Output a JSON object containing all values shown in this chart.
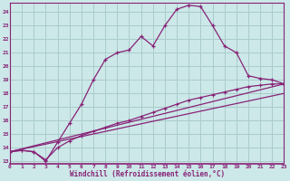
{
  "xlabel": "Windchill (Refroidissement éolien,°C)",
  "bg_color": "#cce8e8",
  "grid_color": "#aacccc",
  "line_color": "#882277",
  "x_ticks": [
    0,
    1,
    2,
    3,
    4,
    5,
    6,
    7,
    8,
    9,
    10,
    11,
    12,
    13,
    14,
    15,
    16,
    17,
    18,
    19,
    20,
    21,
    22,
    23
  ],
  "y_ticks": [
    13,
    14,
    15,
    16,
    17,
    18,
    19,
    20,
    21,
    22,
    23,
    24
  ],
  "xlim": [
    0,
    23
  ],
  "ylim": [
    12.8,
    24.7
  ],
  "line1_x": [
    0,
    1,
    2,
    3,
    4,
    5,
    6,
    7,
    8,
    9,
    10,
    11,
    12,
    13,
    14,
    15,
    16,
    17,
    18,
    19,
    20,
    21,
    22,
    23
  ],
  "line1_y": [
    13.7,
    13.8,
    13.7,
    13.0,
    14.4,
    15.8,
    17.2,
    19.0,
    20.5,
    21.0,
    21.2,
    22.2,
    21.5,
    23.0,
    24.2,
    24.5,
    24.4,
    23.0,
    21.5,
    21.0,
    19.3,
    19.1,
    19.0,
    18.7
  ],
  "line2_x": [
    0,
    1,
    2,
    3,
    4,
    5,
    6,
    7,
    8,
    9,
    10,
    11,
    12,
    13,
    14,
    15,
    16,
    17,
    18,
    19,
    20,
    21,
    22,
    23
  ],
  "line2_y": [
    13.7,
    13.8,
    13.7,
    13.1,
    14.0,
    14.5,
    14.9,
    15.2,
    15.5,
    15.8,
    16.0,
    16.3,
    16.6,
    16.9,
    17.2,
    17.5,
    17.7,
    17.9,
    18.1,
    18.3,
    18.5,
    18.6,
    18.7,
    18.7
  ],
  "line3_x": [
    0,
    23
  ],
  "line3_y": [
    13.7,
    18.7
  ],
  "line4_x": [
    0,
    23
  ],
  "line4_y": [
    13.7,
    18.0
  ]
}
